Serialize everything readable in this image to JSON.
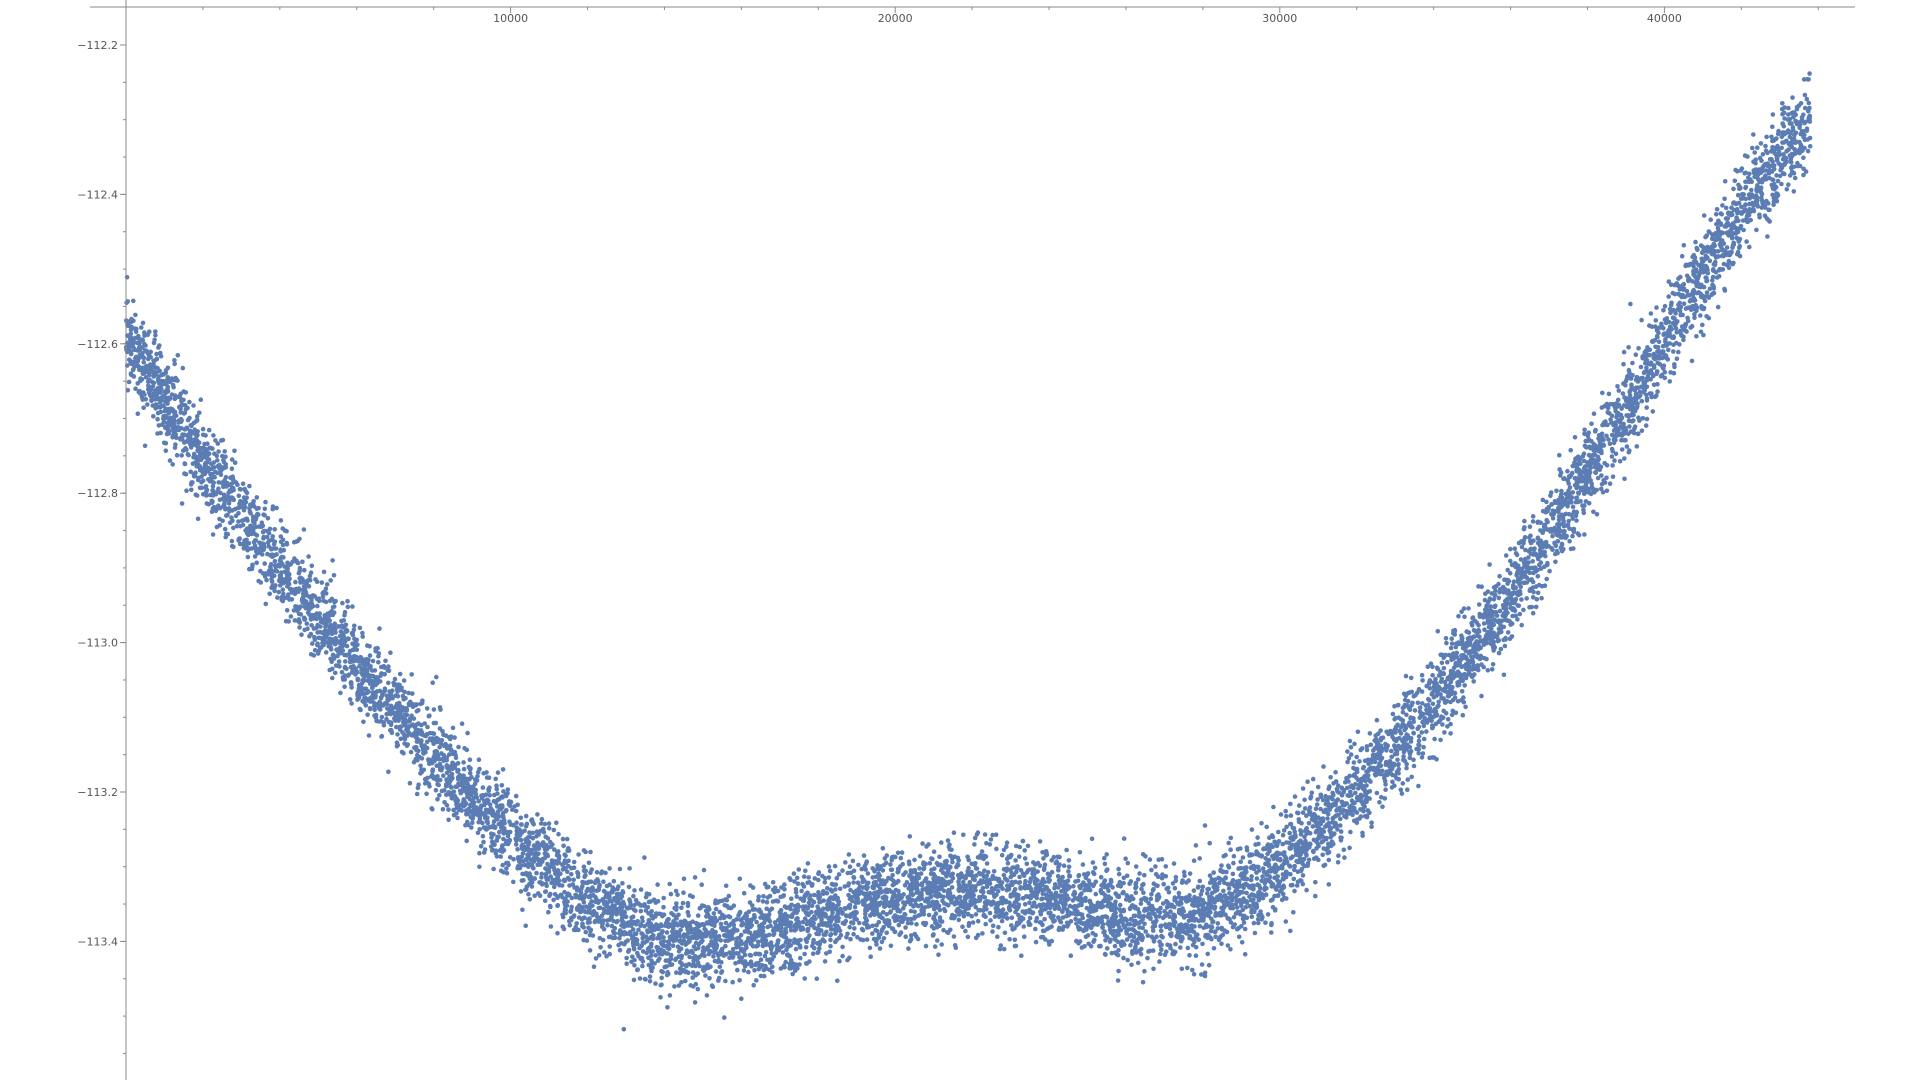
{
  "chart_data": {
    "type": "scatter",
    "title": "",
    "xlabel": "",
    "ylabel": "",
    "xlim": [
      0,
      45000
    ],
    "ylim": [
      -113.6,
      -112.17
    ],
    "grid": false,
    "legend": "none",
    "x_ticks": [
      10000,
      20000,
      30000,
      40000
    ],
    "x_tick_labels": [
      "10000",
      "20000",
      "30000",
      "40000"
    ],
    "y_ticks": [
      -112.2,
      -112.4,
      -112.6,
      -112.8,
      -113.0,
      -113.2,
      -113.4
    ],
    "y_tick_labels": [
      "−112.2",
      "−112.4",
      "−112.6",
      "−112.8",
      "−113.0",
      "−113.2",
      "−113.4"
    ],
    "point_color": "#5b7db4",
    "series": [
      {
        "x_start": 0,
        "x_end": 43800,
        "trend_x": [
          0,
          2000,
          4000,
          6000,
          8000,
          10000,
          12000,
          14000,
          16000,
          18000,
          20000,
          22000,
          24000,
          26000,
          28000,
          30000,
          32000,
          34000,
          36000,
          38000,
          40000,
          42000,
          43000,
          43800
        ],
        "trend_y": [
          -112.59,
          -112.76,
          -112.9,
          -113.03,
          -113.15,
          -113.26,
          -113.35,
          -113.4,
          -113.4,
          -113.37,
          -113.34,
          -113.33,
          -113.34,
          -113.37,
          -113.36,
          -113.3,
          -113.2,
          -113.08,
          -112.94,
          -112.77,
          -112.6,
          -112.42,
          -112.35,
          -112.3
        ],
        "spread": 0.03
      }
    ]
  }
}
